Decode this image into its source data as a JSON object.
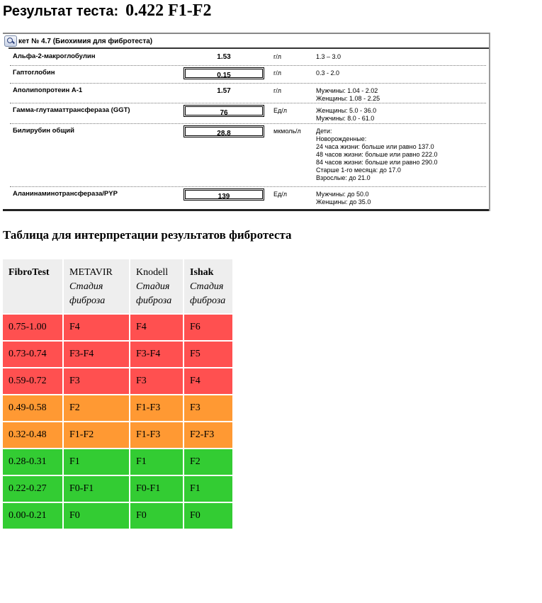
{
  "result": {
    "label": "Результат теста:",
    "value": "0.422 F1-F2"
  },
  "lab": {
    "header": "кет № 4.7 (Биохимия для фибротеста)",
    "rows": [
      {
        "name": "Альфа-2-макроглобулин",
        "value": "1.53",
        "unit": "г/л",
        "ref": [
          "1.3 – 3.0"
        ]
      },
      {
        "name": "Гаптоглобин",
        "value": "0.15",
        "unit": "г/л",
        "ref": [
          "0.3 - 2.0"
        ]
      },
      {
        "name": "Аполипопротеин А-1",
        "value": "1.57",
        "unit": "г/л",
        "ref": [
          "Мужчины: 1.04 - 2.02",
          "Женщины: 1.08 - 2.25"
        ]
      },
      {
        "name": "Гамма-глутаматтрансфераза (GGT)",
        "value": "76",
        "unit": "Ед/л",
        "ref": [
          "Женщины: 5.0 - 36.0",
          "Мужчины: 8.0 - 61.0"
        ]
      },
      {
        "name": "Билирубин общий",
        "value": "28.8",
        "unit": "мкмоль/л",
        "ref": [
          "Дети:",
          "Новорожденные:",
          "24 часа жизни: больше или равно 137.0",
          "48 часов жизни: больше или равно 222.0",
          "84 часов жизни: больше или равно 290.0",
          "Старше 1-го месяца: до 17.0",
          "Взрослые: до 21.0"
        ]
      },
      {
        "name": "Аланинаминотрансфераза/PYP",
        "value": "139",
        "unit": "Ед/л",
        "ref": [
          "Мужчины: до 50.0",
          "Женщины: до 35.0"
        ]
      }
    ]
  },
  "table_title": "Таблица для интерпретации результатов фибротеста",
  "table": {
    "headers": [
      {
        "name": "FibroTest",
        "sub": ""
      },
      {
        "name": "METAVIR",
        "sub": "Стадия фиброза"
      },
      {
        "name": "Knodell",
        "sub": "Стадия фиброза"
      },
      {
        "name": "Ishak",
        "sub": "Стадия фиброза"
      }
    ],
    "rows": [
      {
        "cells": [
          "0.75-1.00",
          "F4",
          "F4",
          "F6"
        ],
        "level": "red"
      },
      {
        "cells": [
          "0.73-0.74",
          "F3-F4",
          "F3-F4",
          "F5"
        ],
        "level": "red"
      },
      {
        "cells": [
          "0.59-0.72",
          "F3",
          "F3",
          "F4"
        ],
        "level": "red"
      },
      {
        "cells": [
          "0.49-0.58",
          "F2",
          "F1-F3",
          "F3"
        ],
        "level": "orange"
      },
      {
        "cells": [
          "0.32-0.48",
          "F1-F2",
          "F1-F3",
          "F2-F3"
        ],
        "level": "orange"
      },
      {
        "cells": [
          "0.28-0.31",
          "F1",
          "F1",
          "F2"
        ],
        "level": "green"
      },
      {
        "cells": [
          "0.22-0.27",
          "F0-F1",
          "F0-F1",
          "F1"
        ],
        "level": "green"
      },
      {
        "cells": [
          "0.00-0.21",
          "F0",
          "F0",
          "F0"
        ],
        "level": "green"
      }
    ],
    "colors": {
      "red": "#ff5050",
      "orange": "#ff9933",
      "green": "#33cc33",
      "header_bg": "#eeeeee"
    }
  }
}
